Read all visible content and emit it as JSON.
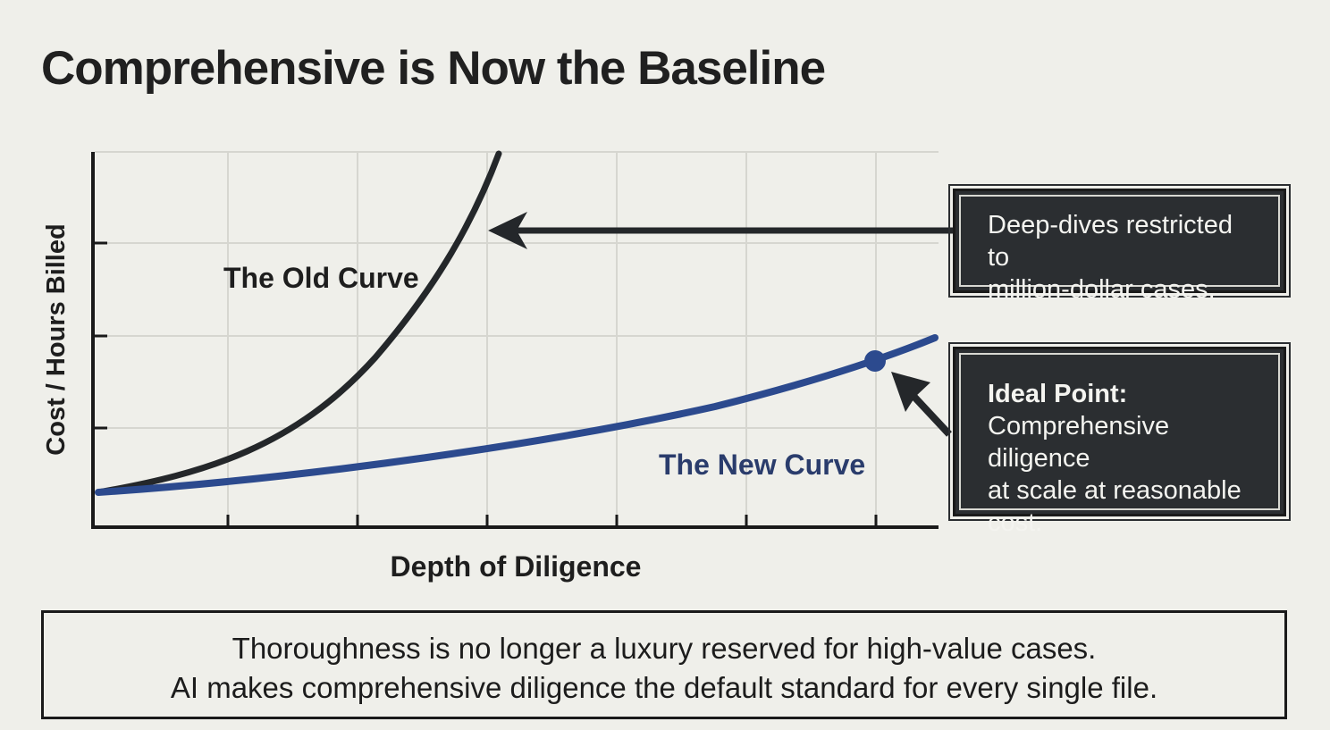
{
  "title": "Comprehensive is Now the Baseline",
  "colors": {
    "background": "#efefea",
    "old_curve": "#24272a",
    "new_curve": "#2c4a8e",
    "callout_bg": "#2b2e31",
    "grid": "#d6d6d0"
  },
  "chart_data": {
    "type": "line",
    "xlabel": "Depth of Diligence",
    "ylabel": "Cost / Hours Billed",
    "grid": true,
    "series": [
      {
        "name": "The Old Curve",
        "color": "#24272a"
      },
      {
        "name": "The New Curve",
        "color": "#2c4a8e"
      }
    ],
    "highlight_point": {
      "label": "Ideal Point:"
    }
  },
  "callouts": {
    "old": {
      "text_line1": "Deep-dives restricted to",
      "text_line2": "million-dollar cases."
    },
    "ideal": {
      "heading": "Ideal Point:",
      "line1": "Comprehensive diligence",
      "line2": "at scale at reasonable",
      "line3": "cost."
    }
  },
  "footer": {
    "line1": "Thoroughness is no longer a luxury reserved for high-value cases.",
    "line2": "AI makes comprehensive diligence the default standard for every single file."
  }
}
